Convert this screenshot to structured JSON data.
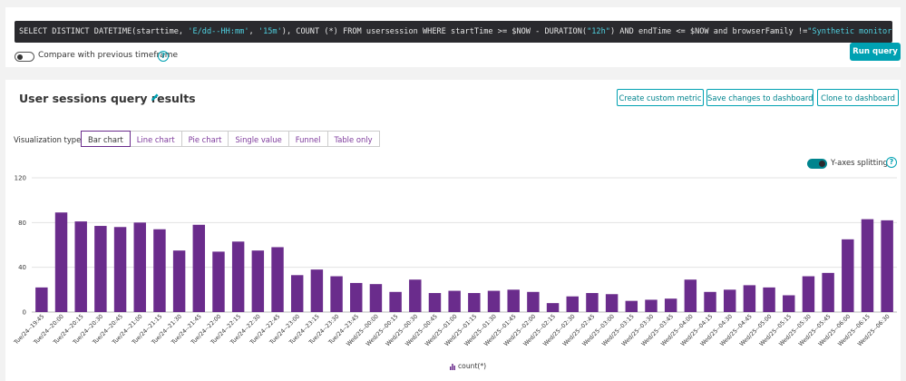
{
  "query": {
    "parts": [
      {
        "t": "SELECT DISTINCT DATETIME(starttime, ",
        "c": ""
      },
      {
        "t": "'E/dd--HH:mm'",
        "c": "str"
      },
      {
        "t": ", ",
        "c": ""
      },
      {
        "t": "'15m'",
        "c": "str"
      },
      {
        "t": "), COUNT (*) FROM usersession WHERE startTime >= $NOW - DURATION(",
        "c": ""
      },
      {
        "t": "\"12h\"",
        "c": "str"
      },
      {
        "t": ") AND endTime <= $NOW and browserFamily !=",
        "c": ""
      },
      {
        "t": "\"Synthetic monitor\"",
        "c": "str"
      }
    ]
  },
  "compare": {
    "label": "Compare with previous timeframe",
    "enabled": false
  },
  "run_query_label": "Run query",
  "results": {
    "title": "User sessions query results",
    "buttons": {
      "create_metric": "Create custom metric",
      "save_dashboard": "Save changes to dashboard",
      "clone_dashboard": "Clone to dashboard"
    },
    "viz_label": "Visualization types:",
    "viz_types": [
      "Bar chart",
      "Line chart",
      "Pie chart",
      "Single value",
      "Funnel",
      "Table only"
    ],
    "viz_active": "Bar chart",
    "y_split": {
      "label": "Y-axes splitting",
      "enabled": true
    }
  },
  "colors": {
    "accent": "#00a1b2",
    "bar": "#6a2c8c",
    "query_bg": "#2a2a2e"
  },
  "icons": {
    "edit": "pencil-icon",
    "help": "help-circle-icon",
    "legend": "bar-chart-icon"
  },
  "chart_data": {
    "type": "bar",
    "categories": [
      "Tue/24--19:45",
      "Tue/24--20:00",
      "Tue/24--20:15",
      "Tue/24--20:30",
      "Tue/24--20:45",
      "Tue/24--21:00",
      "Tue/24--21:15",
      "Tue/24--21:30",
      "Tue/24--21:45",
      "Tue/24--22:00",
      "Tue/24--22:15",
      "Tue/24--22:30",
      "Tue/24--22:45",
      "Tue/24--23:00",
      "Tue/24--23:15",
      "Tue/24--23:30",
      "Tue/24--23:45",
      "Wed/25--00:00",
      "Wed/25--00:15",
      "Wed/25--00:30",
      "Wed/25--00:45",
      "Wed/25--01:00",
      "Wed/25--01:15",
      "Wed/25--01:30",
      "Wed/25--01:45",
      "Wed/25--02:00",
      "Wed/25--02:15",
      "Wed/25--02:30",
      "Wed/25--02:45",
      "Wed/25--03:00",
      "Wed/25--03:15",
      "Wed/25--03:30",
      "Wed/25--03:45",
      "Wed/25--04:00",
      "Wed/25--04:15",
      "Wed/25--04:30",
      "Wed/25--04:45",
      "Wed/25--05:00",
      "Wed/25--05:15",
      "Wed/25--05:30",
      "Wed/25--05:45",
      "Wed/25--06:00",
      "Wed/25--06:15",
      "Wed/25--06:30"
    ],
    "series": [
      {
        "name": "count(*)",
        "values": [
          22,
          89,
          81,
          77,
          76,
          80,
          74,
          55,
          78,
          54,
          63,
          55,
          58,
          33,
          38,
          32,
          26,
          25,
          18,
          29,
          17,
          19,
          17,
          19,
          20,
          18,
          8,
          14,
          17,
          16,
          10,
          11,
          12,
          29,
          18,
          20,
          24,
          22,
          15,
          32,
          35,
          65,
          83,
          82
        ]
      }
    ],
    "ylim": [
      0,
      120
    ],
    "yticks": [
      0,
      40,
      80,
      120
    ],
    "grid": true,
    "legend": "bottom-center"
  }
}
